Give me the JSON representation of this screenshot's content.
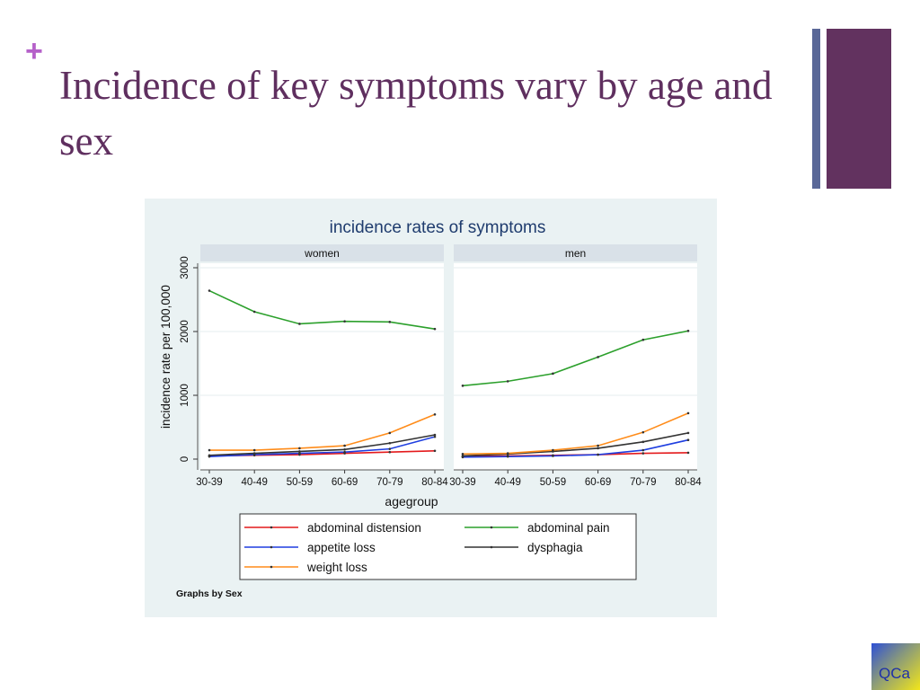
{
  "slide": {
    "plus": "+",
    "title": "Incidence of key symptoms vary by age and sex",
    "logo": "QCa"
  },
  "chart_data": {
    "type": "line",
    "title": "incidence rates of symptoms",
    "xlabel": "agegroup",
    "ylabel": "incidence rate per 100,000",
    "ylim": [
      0,
      3000
    ],
    "yticks": [
      0,
      1000,
      2000,
      3000
    ],
    "categories": [
      "30-39",
      "40-49",
      "50-59",
      "60-69",
      "70-79",
      "80-84"
    ],
    "footnote": "Graphs by Sex",
    "legend_position": "bottom",
    "panels": [
      {
        "name": "women",
        "series": [
          {
            "name": "abdominal distension",
            "color": "#e41a1c",
            "values": [
              50,
              60,
              70,
              90,
              110,
              130
            ]
          },
          {
            "name": "abdominal pain",
            "color": "#2ca02c",
            "values": [
              2640,
              2310,
              2120,
              2160,
              2150,
              2040
            ]
          },
          {
            "name": "appetite loss",
            "color": "#1f3fe0",
            "values": [
              40,
              70,
              90,
              110,
              160,
              350
            ]
          },
          {
            "name": "dysphagia",
            "color": "#333333",
            "values": [
              60,
              90,
              120,
              150,
              250,
              380
            ]
          },
          {
            "name": "weight loss",
            "color": "#ff8c1a",
            "values": [
              140,
              140,
              170,
              210,
              410,
              700
            ]
          }
        ]
      },
      {
        "name": "men",
        "series": [
          {
            "name": "abdominal distension",
            "color": "#e41a1c",
            "values": [
              40,
              50,
              60,
              70,
              90,
              100
            ]
          },
          {
            "name": "abdominal pain",
            "color": "#2ca02c",
            "values": [
              1150,
              1220,
              1340,
              1600,
              1870,
              2010
            ]
          },
          {
            "name": "appetite loss",
            "color": "#1f3fe0",
            "values": [
              30,
              40,
              50,
              70,
              140,
              300
            ]
          },
          {
            "name": "dysphagia",
            "color": "#333333",
            "values": [
              50,
              80,
              120,
              170,
              270,
              410
            ]
          },
          {
            "name": "weight loss",
            "color": "#ff8c1a",
            "values": [
              80,
              90,
              140,
              210,
              420,
              720
            ]
          }
        ]
      }
    ]
  }
}
